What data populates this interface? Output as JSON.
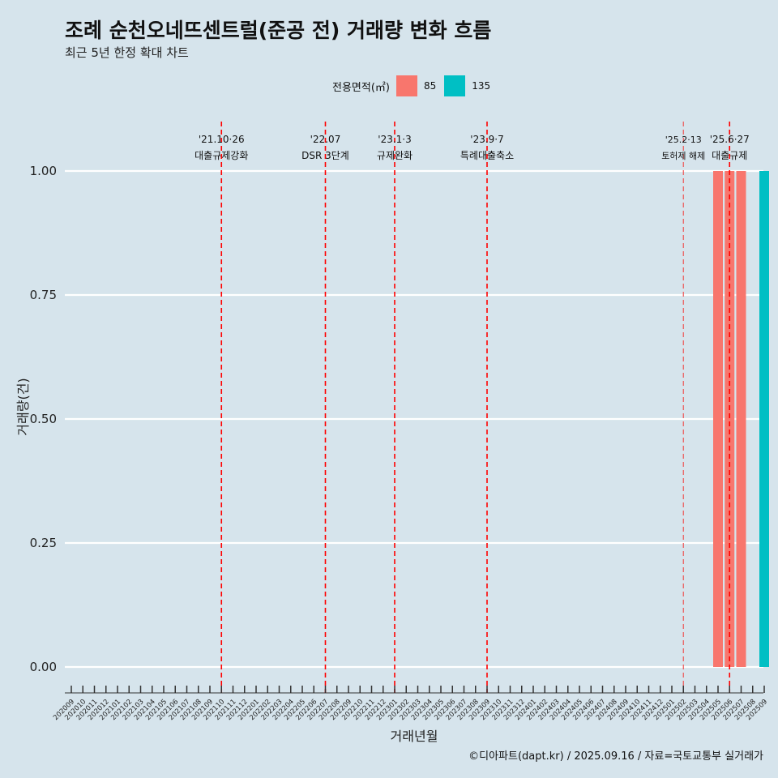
{
  "title": "조례 순천오네뜨센트럴(준공 전) 거래량 변화 흐름",
  "subtitle": "최근 5년 한정 확대 차트",
  "caption": "©디아파트(dapt.kr) / 2025.09.16 / 자료=국토교통부 실거래가",
  "legend": {
    "title": "전용면적(㎡)",
    "items": [
      {
        "label": "85",
        "color": "#f8766d"
      },
      {
        "label": "135",
        "color": "#00bfc4"
      }
    ]
  },
  "chart_data": {
    "type": "bar",
    "title": "조례 순천오네뜨센트럴(준공 전) 거래량 변화 흐름",
    "subtitle": "최근 5년 한정 확대 차트",
    "xlabel": "거래년월",
    "ylabel": "거래량(건)",
    "ylim": [
      0,
      1
    ],
    "yticks": [
      "0.00",
      "0.25",
      "0.50",
      "0.75",
      "1.00"
    ],
    "categories": [
      "202009",
      "202010",
      "202011",
      "202012",
      "202101",
      "202102",
      "202103",
      "202104",
      "202105",
      "202106",
      "202107",
      "202108",
      "202109",
      "202110",
      "202111",
      "202112",
      "202201",
      "202202",
      "202203",
      "202204",
      "202205",
      "202206",
      "202207",
      "202208",
      "202209",
      "202210",
      "202211",
      "202212",
      "202301",
      "202302",
      "202303",
      "202304",
      "202305",
      "202306",
      "202307",
      "202308",
      "202309",
      "202310",
      "202311",
      "202312",
      "202401",
      "202402",
      "202403",
      "202404",
      "202405",
      "202406",
      "202407",
      "202408",
      "202409",
      "202410",
      "202411",
      "202412",
      "202501",
      "202502",
      "202503",
      "202504",
      "202505",
      "202506",
      "202507",
      "202508",
      "202509"
    ],
    "series": [
      {
        "name": "85",
        "color": "#f8766d",
        "points": [
          {
            "x": "202505",
            "y": 1
          },
          {
            "x": "202506",
            "y": 1
          },
          {
            "x": "202507",
            "y": 1
          }
        ]
      },
      {
        "name": "135",
        "color": "#00bfc4",
        "points": [
          {
            "x": "202509",
            "y": 1
          }
        ]
      }
    ],
    "annotations": [
      {
        "x": "202110",
        "date": "'21.10·26",
        "label": "대출규제강화",
        "style": "bold"
      },
      {
        "x": "202207",
        "date": "'22.07",
        "label": "DSR 3단계",
        "style": "bold"
      },
      {
        "x": "202301",
        "date": "'23.1·3",
        "label": "규제완화",
        "style": "bold"
      },
      {
        "x": "202309",
        "date": "'23.9·7",
        "label": "특례대출축소",
        "style": "bold"
      },
      {
        "x": "202502",
        "date": "'25.2·13",
        "label": "토허제 해제",
        "style": "light"
      },
      {
        "x": "202506",
        "date": "'25.6·27",
        "label": "대출규제",
        "style": "bold"
      }
    ],
    "grid": true,
    "legend_position": "top"
  }
}
